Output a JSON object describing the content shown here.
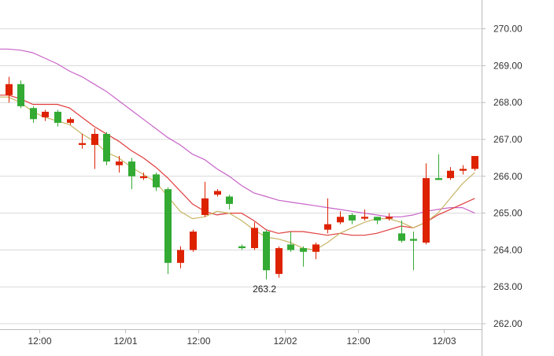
{
  "chart_data": {
    "type": "candlestick",
    "title": "",
    "xlabel": "",
    "ylabel": "",
    "ylim": [
      261.8,
      271.0
    ],
    "y_ticks": [
      262.0,
      263.0,
      264.0,
      265.0,
      266.0,
      267.0,
      268.0,
      269.0,
      270.0
    ],
    "y_tick_labels": [
      "262.00",
      "263.00",
      "264.00",
      "265.00",
      "266.00",
      "267.00",
      "268.00",
      "269.00",
      "270.00"
    ],
    "y_axis_position": "right",
    "grid": true,
    "x_ticks": [
      {
        "after": 2,
        "label": "12:00"
      },
      {
        "after": 9,
        "label": "12/01"
      },
      {
        "after": 15,
        "label": "12:00"
      },
      {
        "after": 22,
        "label": "12/02"
      },
      {
        "after": 28,
        "label": "12:00"
      },
      {
        "after": 35,
        "label": "12/03"
      }
    ],
    "colors": {
      "up": "#dd2200",
      "down": "#33aa33",
      "ma_fast": "#c8b464",
      "ma_mid": "#e03c3c",
      "ma_slow": "#c864c8",
      "grid": "#d8d8d8",
      "axis": "#bbbbbb"
    },
    "candles": [
      {
        "open": 268.2,
        "close": 268.5,
        "high": 268.7,
        "low": 268.0
      },
      {
        "open": 268.5,
        "close": 267.9,
        "high": 268.6,
        "low": 267.85
      },
      {
        "open": 267.85,
        "close": 267.55,
        "high": 267.9,
        "low": 267.45
      },
      {
        "open": 267.6,
        "close": 267.75,
        "high": 267.8,
        "low": 267.5
      },
      {
        "open": 267.75,
        "close": 267.45,
        "high": 267.8,
        "low": 267.35
      },
      {
        "open": 267.45,
        "close": 267.55,
        "high": 267.6,
        "low": 267.4
      },
      {
        "open": 266.85,
        "close": 266.9,
        "high": 267.15,
        "low": 266.75
      },
      {
        "open": 266.85,
        "close": 267.15,
        "high": 267.3,
        "low": 266.2
      },
      {
        "open": 267.15,
        "close": 266.4,
        "high": 267.2,
        "low": 266.3
      },
      {
        "open": 266.3,
        "close": 266.4,
        "high": 266.55,
        "low": 266.1
      },
      {
        "open": 266.4,
        "close": 266.0,
        "high": 266.5,
        "low": 265.65
      },
      {
        "open": 265.95,
        "close": 266.0,
        "high": 266.1,
        "low": 265.9
      },
      {
        "open": 266.05,
        "close": 265.7,
        "high": 266.1,
        "low": 265.6
      },
      {
        "open": 265.65,
        "close": 263.65,
        "high": 265.7,
        "low": 263.35
      },
      {
        "open": 263.65,
        "close": 264.0,
        "high": 264.1,
        "low": 263.5
      },
      {
        "open": 264.0,
        "close": 264.5,
        "high": 264.55,
        "low": 263.95
      },
      {
        "open": 264.95,
        "close": 265.4,
        "high": 265.85,
        "low": 264.9
      },
      {
        "open": 265.5,
        "close": 265.6,
        "high": 265.65,
        "low": 265.45
      },
      {
        "open": 265.45,
        "close": 265.25,
        "high": 265.5,
        "low": 265.1
      },
      {
        "open": 264.1,
        "close": 264.05,
        "high": 264.15,
        "low": 264.0
      },
      {
        "open": 264.05,
        "close": 264.6,
        "high": 264.75,
        "low": 264.0
      },
      {
        "open": 264.5,
        "close": 263.45,
        "high": 264.55,
        "low": 263.2
      },
      {
        "open": 263.35,
        "close": 264.05,
        "high": 264.1,
        "low": 263.25
      },
      {
        "open": 264.15,
        "close": 264.0,
        "high": 264.5,
        "low": 263.95
      },
      {
        "open": 264.05,
        "close": 263.95,
        "high": 264.1,
        "low": 263.55
      },
      {
        "open": 263.95,
        "close": 264.15,
        "high": 264.2,
        "low": 263.75
      },
      {
        "open": 264.55,
        "close": 264.7,
        "high": 265.4,
        "low": 264.45
      },
      {
        "open": 264.75,
        "close": 264.9,
        "high": 265.05,
        "low": 264.7
      },
      {
        "open": 264.95,
        "close": 264.8,
        "high": 265.0,
        "low": 264.7
      },
      {
        "open": 264.85,
        "close": 264.9,
        "high": 265.1,
        "low": 264.8
      },
      {
        "open": 264.9,
        "close": 264.8,
        "high": 264.9,
        "low": 264.7
      },
      {
        "open": 264.85,
        "close": 264.9,
        "high": 265.0,
        "low": 264.8
      },
      {
        "open": 264.45,
        "close": 264.25,
        "high": 264.8,
        "low": 264.2
      },
      {
        "open": 264.3,
        "close": 264.25,
        "high": 264.5,
        "low": 263.45
      },
      {
        "open": 264.2,
        "close": 265.95,
        "high": 266.35,
        "low": 264.15
      },
      {
        "open": 265.95,
        "close": 265.9,
        "high": 266.6,
        "low": 265.9
      },
      {
        "open": 265.95,
        "close": 266.15,
        "high": 266.25,
        "low": 265.9
      },
      {
        "open": 266.15,
        "close": 266.2,
        "high": 266.3,
        "low": 266.05
      },
      {
        "open": 266.2,
        "close": 266.55,
        "high": 266.55,
        "low": 266.15
      }
    ],
    "ma_fast": [
      268.15,
      268.0,
      267.75,
      267.6,
      267.5,
      267.4,
      267.15,
      266.95,
      266.65,
      266.5,
      266.25,
      266.05,
      265.85,
      265.45,
      265.05,
      264.85,
      264.9,
      265.05,
      265.0,
      264.8,
      264.55,
      264.35,
      264.3,
      264.2,
      264.05,
      264.0,
      264.2,
      264.45,
      264.6,
      264.75,
      264.85,
      264.85,
      264.75,
      264.6,
      264.75,
      265.0,
      265.4,
      265.8,
      266.1
    ],
    "ma_mid": [
      268.2,
      268.1,
      267.95,
      267.95,
      267.95,
      267.85,
      267.6,
      267.35,
      267.15,
      266.95,
      266.7,
      266.5,
      266.25,
      265.95,
      265.6,
      265.25,
      265.05,
      264.95,
      265.0,
      265.0,
      264.8,
      264.55,
      264.45,
      264.5,
      264.5,
      264.45,
      264.4,
      264.45,
      264.4,
      264.4,
      264.45,
      264.55,
      264.65,
      264.6,
      264.75,
      264.95,
      265.1,
      265.25,
      265.4
    ],
    "ma_slow": [
      269.45,
      269.42,
      269.35,
      269.2,
      269.05,
      268.85,
      268.7,
      268.5,
      268.3,
      268.05,
      267.8,
      267.55,
      267.3,
      267.05,
      266.85,
      266.6,
      266.45,
      266.2,
      266.0,
      265.75,
      265.55,
      265.45,
      265.35,
      265.3,
      265.25,
      265.2,
      265.15,
      265.1,
      265.05,
      265.0,
      264.95,
      264.9,
      264.9,
      264.95,
      265.05,
      265.1,
      265.15,
      265.15,
      265.0
    ],
    "annotations": [
      {
        "candle": 21,
        "label": "263.2"
      }
    ]
  }
}
